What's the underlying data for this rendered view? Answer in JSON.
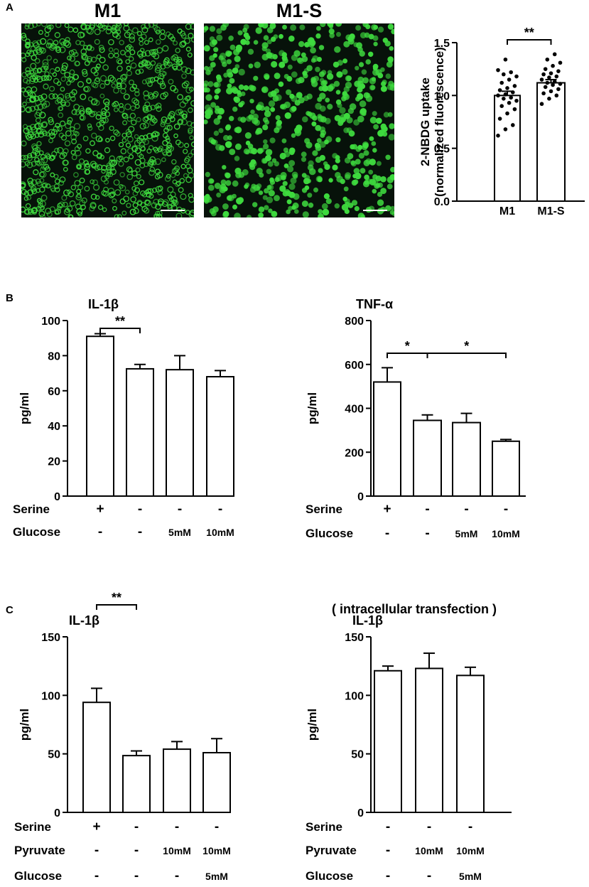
{
  "panels": {
    "a": "A",
    "b": "B",
    "c": "C"
  },
  "images": {
    "left_title": "M1",
    "right_title": "M1-S",
    "cell_color": "#3fdc3f",
    "background_color": "#07120a"
  },
  "chart_data": [
    {
      "id": "nbdg",
      "type": "bar",
      "title": "",
      "ylabel": "2-NBDG uptake\n(normalized fluorescence)",
      "ylim": [
        0,
        1.5
      ],
      "yticks": [
        "0.0",
        "0.5",
        "1.0",
        "1.5"
      ],
      "categories": [
        "M1",
        "M1-S"
      ],
      "values": [
        1.0,
        1.12
      ],
      "errors": [
        0.04,
        0.03
      ],
      "points": [
        [
          0.62,
          0.68,
          0.72,
          0.78,
          0.83,
          0.87,
          0.9,
          0.93,
          0.95,
          0.97,
          0.98,
          1.0,
          1.01,
          1.03,
          1.05,
          1.07,
          1.09,
          1.12,
          1.15,
          1.18,
          1.2,
          1.22,
          1.24,
          1.34
        ],
        [
          0.92,
          0.97,
          1.0,
          1.02,
          1.04,
          1.06,
          1.08,
          1.1,
          1.11,
          1.12,
          1.13,
          1.15,
          1.17,
          1.18,
          1.2,
          1.21,
          1.23,
          1.25,
          1.28,
          1.31,
          1.34,
          1.39
        ]
      ],
      "significance": [
        {
          "from": 0,
          "to": 1,
          "label": "**"
        }
      ]
    },
    {
      "id": "b_il1b",
      "type": "bar",
      "title": "IL-1β",
      "ylabel": "pg/ml",
      "ylim": [
        0,
        100
      ],
      "yticks": [
        "0",
        "20",
        "40",
        "60",
        "80",
        "100"
      ],
      "categories": [
        "1",
        "2",
        "3",
        "4"
      ],
      "values": [
        91,
        72.5,
        72,
        68
      ],
      "errors": [
        1.5,
        2.5,
        8,
        3.5
      ],
      "rows": [
        {
          "label": "Serine",
          "values": [
            "+",
            "-",
            "-",
            "-"
          ]
        },
        {
          "label": "Glucose",
          "values": [
            "-",
            "-",
            "5mM",
            "10mM"
          ]
        }
      ],
      "significance": [
        {
          "from": 0,
          "to": 1,
          "label": "**"
        }
      ]
    },
    {
      "id": "b_tnfa",
      "type": "bar",
      "title": "TNF-α",
      "ylabel": "pg/ml",
      "ylim": [
        0,
        800
      ],
      "yticks": [
        "0",
        "200",
        "400",
        "600",
        "800"
      ],
      "categories": [
        "1",
        "2",
        "3",
        "4"
      ],
      "values": [
        520,
        345,
        335,
        250
      ],
      "errors": [
        65,
        25,
        42,
        8
      ],
      "rows": [
        {
          "label": "Serine",
          "values": [
            "+",
            "-",
            "-",
            "-"
          ]
        },
        {
          "label": "Glucose",
          "values": [
            "-",
            "-",
            "5mM",
            "10mM"
          ]
        }
      ],
      "significance": [
        {
          "from": 0,
          "to": 1,
          "label": "*"
        },
        {
          "from": 1,
          "to": 3,
          "label": "*"
        }
      ]
    },
    {
      "id": "c_il1b",
      "type": "bar",
      "title": "IL-1β",
      "ylabel": "pg/ml",
      "ylim": [
        0,
        150
      ],
      "yticks": [
        "0",
        "50",
        "100",
        "150"
      ],
      "categories": [
        "1",
        "2",
        "3",
        "4"
      ],
      "values": [
        94,
        48.5,
        54,
        51
      ],
      "errors": [
        12,
        4,
        6.5,
        12
      ],
      "rows": [
        {
          "label": "Serine",
          "values": [
            "+",
            "-",
            "-",
            "-"
          ]
        },
        {
          "label": "Pyruvate",
          "values": [
            "-",
            "-",
            "10mM",
            "10mM"
          ]
        },
        {
          "label": "Glucose",
          "values": [
            "-",
            "-",
            "-",
            "5mM"
          ]
        }
      ],
      "significance": [
        {
          "from": 0,
          "to": 1,
          "label": "**"
        }
      ]
    },
    {
      "id": "c_il1b_transfection",
      "type": "bar",
      "title": "IL-1β",
      "header": "( intracellular transfection )",
      "ylabel": "pg/ml",
      "ylim": [
        0,
        150
      ],
      "yticks": [
        "0",
        "50",
        "100",
        "150"
      ],
      "categories": [
        "1",
        "2",
        "3"
      ],
      "values": [
        121,
        123,
        117
      ],
      "errors": [
        4,
        13,
        7
      ],
      "rows": [
        {
          "label": "Serine",
          "values": [
            "-",
            "-",
            "-"
          ]
        },
        {
          "label": "Pyruvate",
          "values": [
            "-",
            "10mM",
            "10mM"
          ]
        },
        {
          "label": "Glucose",
          "values": [
            "-",
            "-",
            "5mM"
          ]
        }
      ],
      "significance": []
    }
  ]
}
